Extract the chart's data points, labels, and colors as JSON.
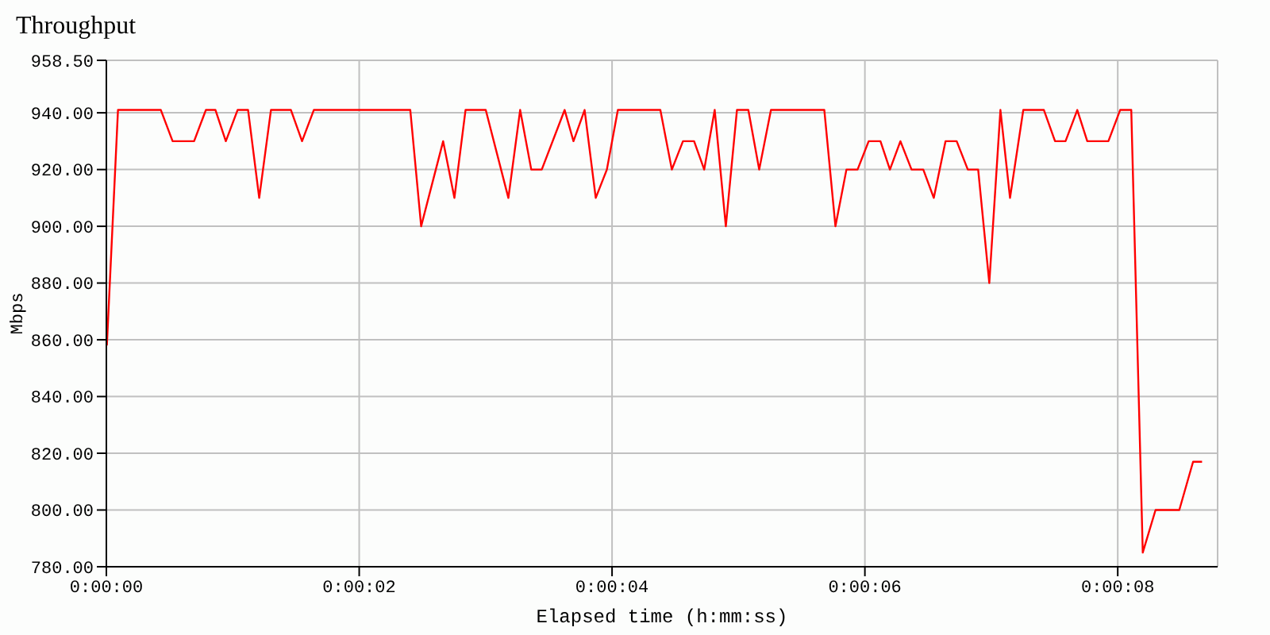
{
  "chart_data": {
    "type": "line",
    "title": "Throughput",
    "xlabel": "Elapsed time (h:mm:ss)",
    "ylabel": "Mbps",
    "x": [
      0.004,
      0.092,
      0.431,
      0.524,
      0.694,
      0.787,
      0.863,
      0.945,
      1.038,
      1.121,
      1.209,
      1.302,
      1.46,
      1.548,
      1.641,
      2.404,
      2.49,
      2.664,
      2.753,
      2.841,
      3.001,
      3.18,
      3.273,
      3.361,
      3.444,
      3.625,
      3.695,
      3.783,
      3.871,
      3.959,
      4.046,
      4.382,
      4.473,
      4.561,
      4.649,
      4.729,
      4.812,
      4.9,
      4.988,
      5.078,
      5.164,
      5.257,
      5.679,
      5.767,
      5.854,
      5.942,
      6.03,
      6.123,
      6.198,
      6.281,
      6.369,
      6.462,
      6.545,
      6.638,
      6.726,
      6.814,
      6.896,
      6.984,
      7.072,
      7.148,
      7.253,
      7.416,
      7.504,
      7.587,
      7.68,
      7.759,
      7.926,
      8.019,
      8.107,
      8.198,
      8.299,
      8.487,
      8.596,
      8.667
    ],
    "series": [
      {
        "color": "#ff0000",
        "values": [
          858,
          941,
          941,
          930,
          930,
          941,
          941,
          930,
          941,
          941,
          910,
          941,
          941,
          930,
          941,
          941,
          900,
          930,
          910,
          941,
          941,
          910,
          941,
          920,
          920,
          941,
          930,
          941,
          910,
          920,
          941,
          941,
          920,
          930,
          930,
          920,
          941,
          900,
          941,
          941,
          920,
          941,
          941,
          900,
          920,
          920,
          930,
          930,
          920,
          930,
          920,
          920,
          910,
          930,
          930,
          920,
          920,
          880,
          941,
          910,
          941,
          941,
          930,
          930,
          941,
          930,
          930,
          941,
          941,
          785,
          800,
          800,
          817,
          817
        ]
      }
    ],
    "xlim": [
      0,
      8.79
    ],
    "xticks": [
      {
        "value": 0,
        "label": "0:00:00"
      },
      {
        "value": 2,
        "label": "0:00:02"
      },
      {
        "value": 4,
        "label": "0:00:04"
      },
      {
        "value": 6,
        "label": "0:00:06"
      },
      {
        "value": 8,
        "label": "0:00:08"
      }
    ],
    "ylim": [
      780,
      958.5
    ],
    "yticks": [
      {
        "value": 780,
        "label": "780.00"
      },
      {
        "value": 800,
        "label": "800.00"
      },
      {
        "value": 820,
        "label": "820.00"
      },
      {
        "value": 840,
        "label": "840.00"
      },
      {
        "value": 860,
        "label": "860.00"
      },
      {
        "value": 880,
        "label": "880.00"
      },
      {
        "value": 900,
        "label": "900.00"
      },
      {
        "value": 920,
        "label": "920.00"
      },
      {
        "value": 940,
        "label": "940.00"
      },
      {
        "value": 958.5,
        "label": "958.50"
      }
    ],
    "grid": true,
    "legend": false,
    "marker": "none",
    "line_style": "solid"
  }
}
